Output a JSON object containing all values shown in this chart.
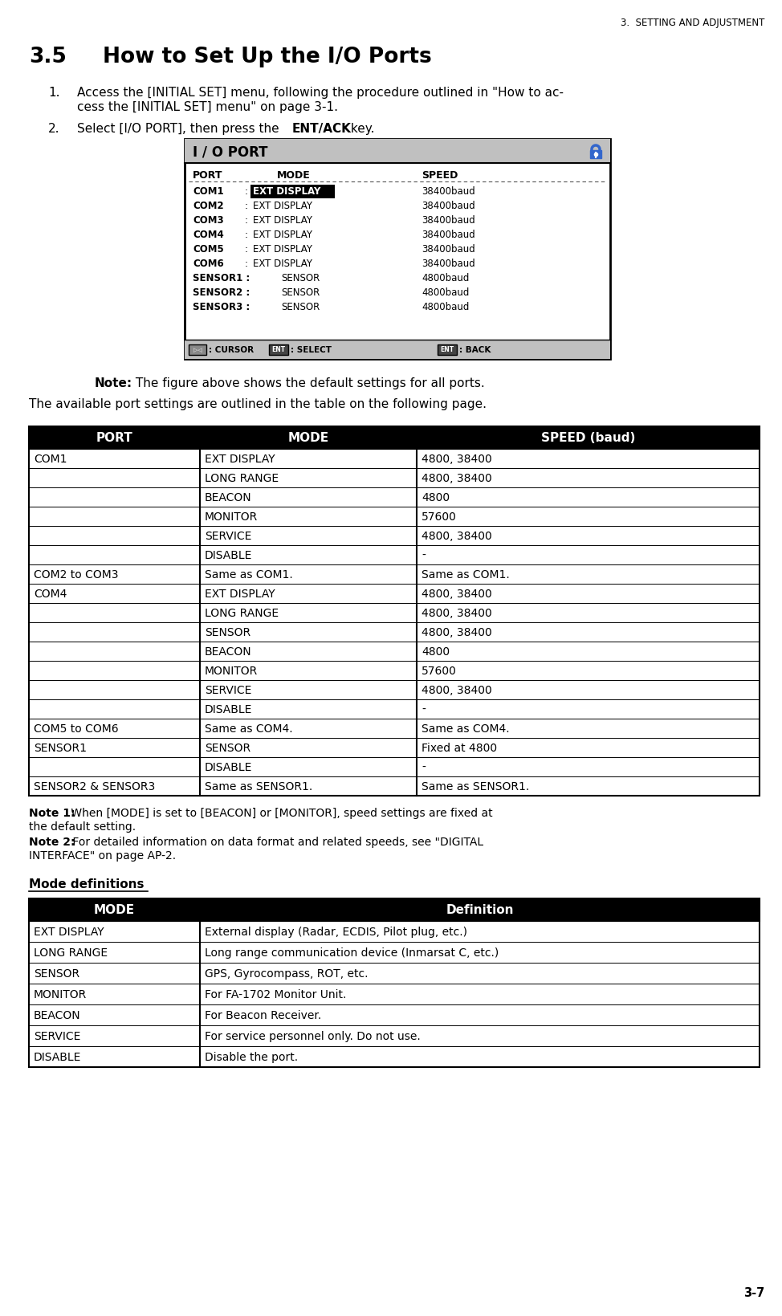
{
  "page_header": "3.  SETTING AND ADJUSTMENT",
  "section_num": "3.5",
  "section_title": "How to Set Up the I/O Ports",
  "step1_line1": "Access the [INITIAL SET] menu, following the procedure outlined in \"How to ac-",
  "step1_line2": "cess the [INITIAL SET] menu\" on page 3-1.",
  "step2_pre": "Select [I/O PORT], then press the ",
  "step2_bold": "ENT/ACK",
  "step2_post": " key.",
  "io_port_title": "I / O PORT",
  "note_bold": "Note:",
  "note_text": " The figure above shows the default settings for all ports.",
  "avail_text": "The available port settings are outlined in the table on the following page.",
  "main_table_headers": [
    "PORT",
    "MODE",
    "SPEED (baud)"
  ],
  "main_table_rows": [
    [
      "COM1",
      "EXT DISPLAY",
      "4800, 38400"
    ],
    [
      "",
      "LONG RANGE",
      "4800, 38400"
    ],
    [
      "",
      "BEACON",
      "4800"
    ],
    [
      "",
      "MONITOR",
      "57600"
    ],
    [
      "",
      "SERVICE",
      "4800, 38400"
    ],
    [
      "",
      "DISABLE",
      "-"
    ],
    [
      "COM2 to COM3",
      "Same as COM1.",
      "Same as COM1."
    ],
    [
      "COM4",
      "EXT DISPLAY",
      "4800, 38400"
    ],
    [
      "",
      "LONG RANGE",
      "4800, 38400"
    ],
    [
      "",
      "SENSOR",
      "4800, 38400"
    ],
    [
      "",
      "BEACON",
      "4800"
    ],
    [
      "",
      "MONITOR",
      "57600"
    ],
    [
      "",
      "SERVICE",
      "4800, 38400"
    ],
    [
      "",
      "DISABLE",
      "-"
    ],
    [
      "COM5 to COM6",
      "Same as COM4.",
      "Same as COM4."
    ],
    [
      "SENSOR1",
      "SENSOR",
      "Fixed at 4800"
    ],
    [
      "",
      "DISABLE",
      "-"
    ],
    [
      "SENSOR2 & SENSOR3",
      "Same as SENSOR1.",
      "Same as SENSOR1."
    ]
  ],
  "note1_bold": "Note 1:",
  "note1_line1": " When [MODE] is set to [BEACON] or [MONITOR], speed settings are fixed at",
  "note1_line2": "the default setting.",
  "note2_bold": "Note 2:",
  "note2_line1": " For detailed information on data format and related speeds, see \"DIGITAL",
  "note2_line2": "INTERFACE\" on page AP-2.",
  "mode_def_title": "Mode definitions",
  "mode_table_headers": [
    "MODE",
    "Definition"
  ],
  "mode_table_rows": [
    [
      "EXT DISPLAY",
      "External display (Radar, ECDIS, Pilot plug, etc.)"
    ],
    [
      "LONG RANGE",
      "Long range communication device (Inmarsat C, etc.)"
    ],
    [
      "SENSOR",
      "GPS, Gyrocompass, ROT, etc."
    ],
    [
      "MONITOR",
      "For FA-1702 Monitor Unit."
    ],
    [
      "BEACON",
      "For Beacon Receiver."
    ],
    [
      "SERVICE",
      "For service personnel only. Do not use."
    ],
    [
      "DISABLE",
      "Disable the port."
    ]
  ],
  "page_num": "3-7",
  "bg_color": "#ffffff",
  "text_color": "#000000"
}
